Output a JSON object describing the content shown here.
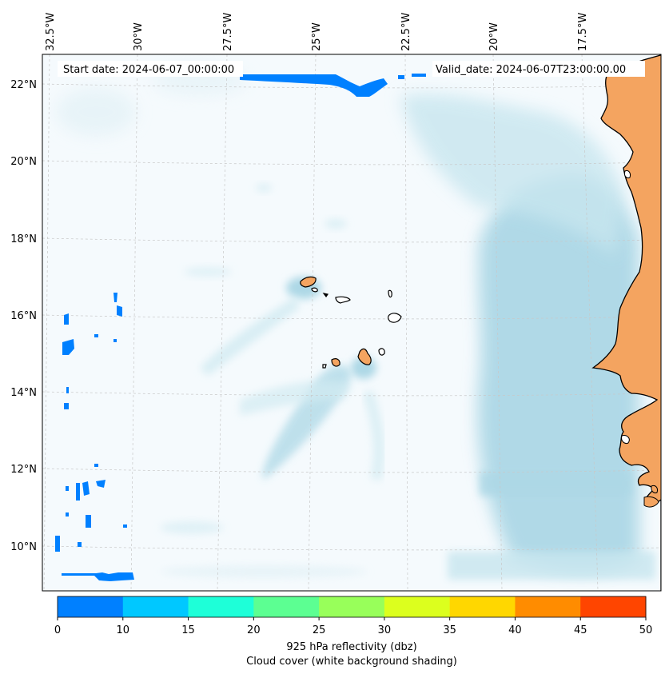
{
  "header": {
    "start_date": "Start date: 2024-06-07_00:00:00",
    "valid_date": "Valid_date: 2024-06-07T23:00:00.00"
  },
  "lon_labels": [
    "32.5°W",
    "30°W",
    "27.5°W",
    "25°W",
    "22.5°W",
    "20°W",
    "17.5°W"
  ],
  "lat_labels": [
    "22°N",
    "20°N",
    "18°N",
    "16°N",
    "14°N",
    "12°N",
    "10°N"
  ],
  "colorbar": {
    "ticks": [
      "0",
      "10",
      "15",
      "20",
      "25",
      "30",
      "35",
      "40",
      "45",
      "50"
    ],
    "colors": [
      "#0080ff",
      "#00c8ff",
      "#1effd8",
      "#5cff92",
      "#98ff5a",
      "#dcff1e",
      "#ffd700",
      "#ff8c00",
      "#ff4500"
    ],
    "title_line1": "925 hPa reflectivity (dbz)",
    "title_line2": "Cloud cover (white background shading)"
  },
  "colors": {
    "land": "#f4a460",
    "cloud": "#add8e6",
    "reflectivity_low": "#0080ff",
    "coast": "#000000"
  }
}
